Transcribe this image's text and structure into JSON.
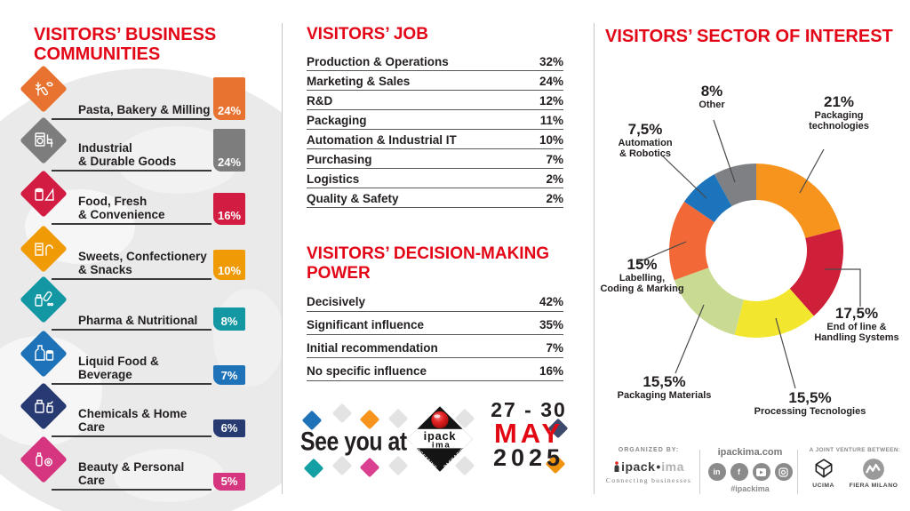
{
  "theme": {
    "accent_red": "#E30617",
    "text": "#231F20",
    "rule": "#58595B"
  },
  "chart_data": [
    {
      "id": "business_communities",
      "type": "bar",
      "unit": "%",
      "title": "VISITORS’ BUSINESS\nCOMMUNITIES",
      "items": [
        {
          "label": "Pasta, Bakery & Milling",
          "value": 24,
          "display": "24%",
          "color": "#E8722F",
          "icon": "bakery-icon"
        },
        {
          "label": "Industrial\n& Durable Goods",
          "value": 24,
          "display": "24%",
          "color": "#7D7D7D",
          "icon": "industrial-icon"
        },
        {
          "label": "Food, Fresh\n& Convenience",
          "value": 16,
          "display": "16%",
          "color": "#D31C41",
          "icon": "food-icon"
        },
        {
          "label": "Sweets, Confectionery\n& Snacks",
          "value": 10,
          "display": "10%",
          "color": "#F09B06",
          "icon": "sweets-icon"
        },
        {
          "label": "Pharma & Nutritional",
          "value": 8,
          "display": "8%",
          "color": "#1297A3",
          "icon": "pharma-icon"
        },
        {
          "label": "Liquid Food & Beverage",
          "value": 7,
          "display": "7%",
          "color": "#1E72B8",
          "icon": "liquid-icon"
        },
        {
          "label": "Chemicals & Home Care",
          "value": 6,
          "display": "6%",
          "color": "#273B72",
          "icon": "chemicals-icon"
        },
        {
          "label": "Beauty & Personal Care",
          "value": 5,
          "display": "5%",
          "color": "#D5367F",
          "icon": "beauty-icon"
        }
      ]
    },
    {
      "id": "jobs",
      "type": "table",
      "title": "VISITORS’ JOB",
      "rows": [
        {
          "label": "Production & Operations",
          "value": 32,
          "display": "32%"
        },
        {
          "label": "Marketing & Sales",
          "value": 24,
          "display": "24%"
        },
        {
          "label": "R&D",
          "value": 12,
          "display": "12%"
        },
        {
          "label": "Packaging",
          "value": 11,
          "display": "11%"
        },
        {
          "label": "Automation & Industrial IT",
          "value": 10,
          "display": "10%"
        },
        {
          "label": "Purchasing",
          "value": 7,
          "display": "7%"
        },
        {
          "label": "Logistics",
          "value": 2,
          "display": "2%"
        },
        {
          "label": "Quality & Safety",
          "value": 2,
          "display": "2%"
        }
      ]
    },
    {
      "id": "decision_power",
      "type": "table",
      "title": "VISITORS’ DECISION-MAKING\nPOWER",
      "rows": [
        {
          "label": "Decisively",
          "value": 42,
          "display": "42%"
        },
        {
          "label": "Significant influence",
          "value": 35,
          "display": "35%"
        },
        {
          "label": "Initial recommendation",
          "value": 7,
          "display": "7%"
        },
        {
          "label": "No specific influence",
          "value": 16,
          "display": "16%"
        }
      ]
    },
    {
      "id": "sector_of_interest",
      "type": "pie",
      "donut": true,
      "title": "VISITORS’ SECTOR OF INTEREST",
      "start_angle": "top",
      "direction": "clockwise",
      "slices": [
        {
          "label": "Packaging technologies",
          "label_lines": "Packaging\ntechnologies",
          "value": 21,
          "display": "21%",
          "color": "#F7941E"
        },
        {
          "label": "End of line & Handling Systems",
          "label_lines": "End of line &\nHandling Systems",
          "value": 17.5,
          "display": "17,5%",
          "color": "#CE2038"
        },
        {
          "label": "Processing Tecnologies",
          "label_lines": "Processing Tecnologies",
          "value": 15.5,
          "display": "15,5%",
          "color": "#F2E72E"
        },
        {
          "label": "Packaging Materials",
          "label_lines": "Packaging Materials",
          "value": 15.5,
          "display": "15,5%",
          "color": "#C9DB93"
        },
        {
          "label": "Labelling, Coding & Marking",
          "label_lines": "Labelling,\nCoding & Marking",
          "value": 15,
          "display": "15%",
          "color": "#F26937"
        },
        {
          "label": "Automation & Robotics",
          "label_lines": "Automation\n& Robotics",
          "value": 7.5,
          "display": "7,5%",
          "color": "#1C75BC"
        },
        {
          "label": "Other",
          "label_lines": "Other",
          "value": 8,
          "display": "8%",
          "color": "#7E8083"
        }
      ]
    }
  ],
  "see_you": {
    "text": "See you at",
    "date_line1": "27 - 30",
    "date_line2": "MAY",
    "date_line3": "2025",
    "logo": {
      "word_top": "ipack",
      "word_bottom": "ima",
      "edge_left": "PROCESSING",
      "edge_right": "PACKAGING"
    },
    "diamonds": [
      "#1E72B8",
      "#E3E3E3",
      "#F7941E",
      "#E3E3E3",
      "#E3E3E3",
      "#12A0A5",
      "#E3E3E3",
      "#D9408F",
      "#E3E3E3",
      "#E3E3E3",
      "#3E4A6B",
      "#F0930F"
    ]
  },
  "footer": {
    "organized_label": "ORGANIZED BY:",
    "brand_prefix": "ipack",
    "brand_dot": "•",
    "brand_suffix": "ima",
    "tagline": "Connecting businesses",
    "site": "ipackima.com",
    "hashtag": "#ipackima",
    "socials": [
      {
        "name": "linkedin",
        "glyph": "in"
      },
      {
        "name": "facebook",
        "glyph": "f"
      },
      {
        "name": "youtube",
        "glyph": ""
      },
      {
        "name": "instagram",
        "glyph": ""
      }
    ],
    "jv_label": "A JOINT VENTURE BETWEEN:",
    "partners": [
      "UCIMA",
      "FIERA MILANO"
    ]
  }
}
